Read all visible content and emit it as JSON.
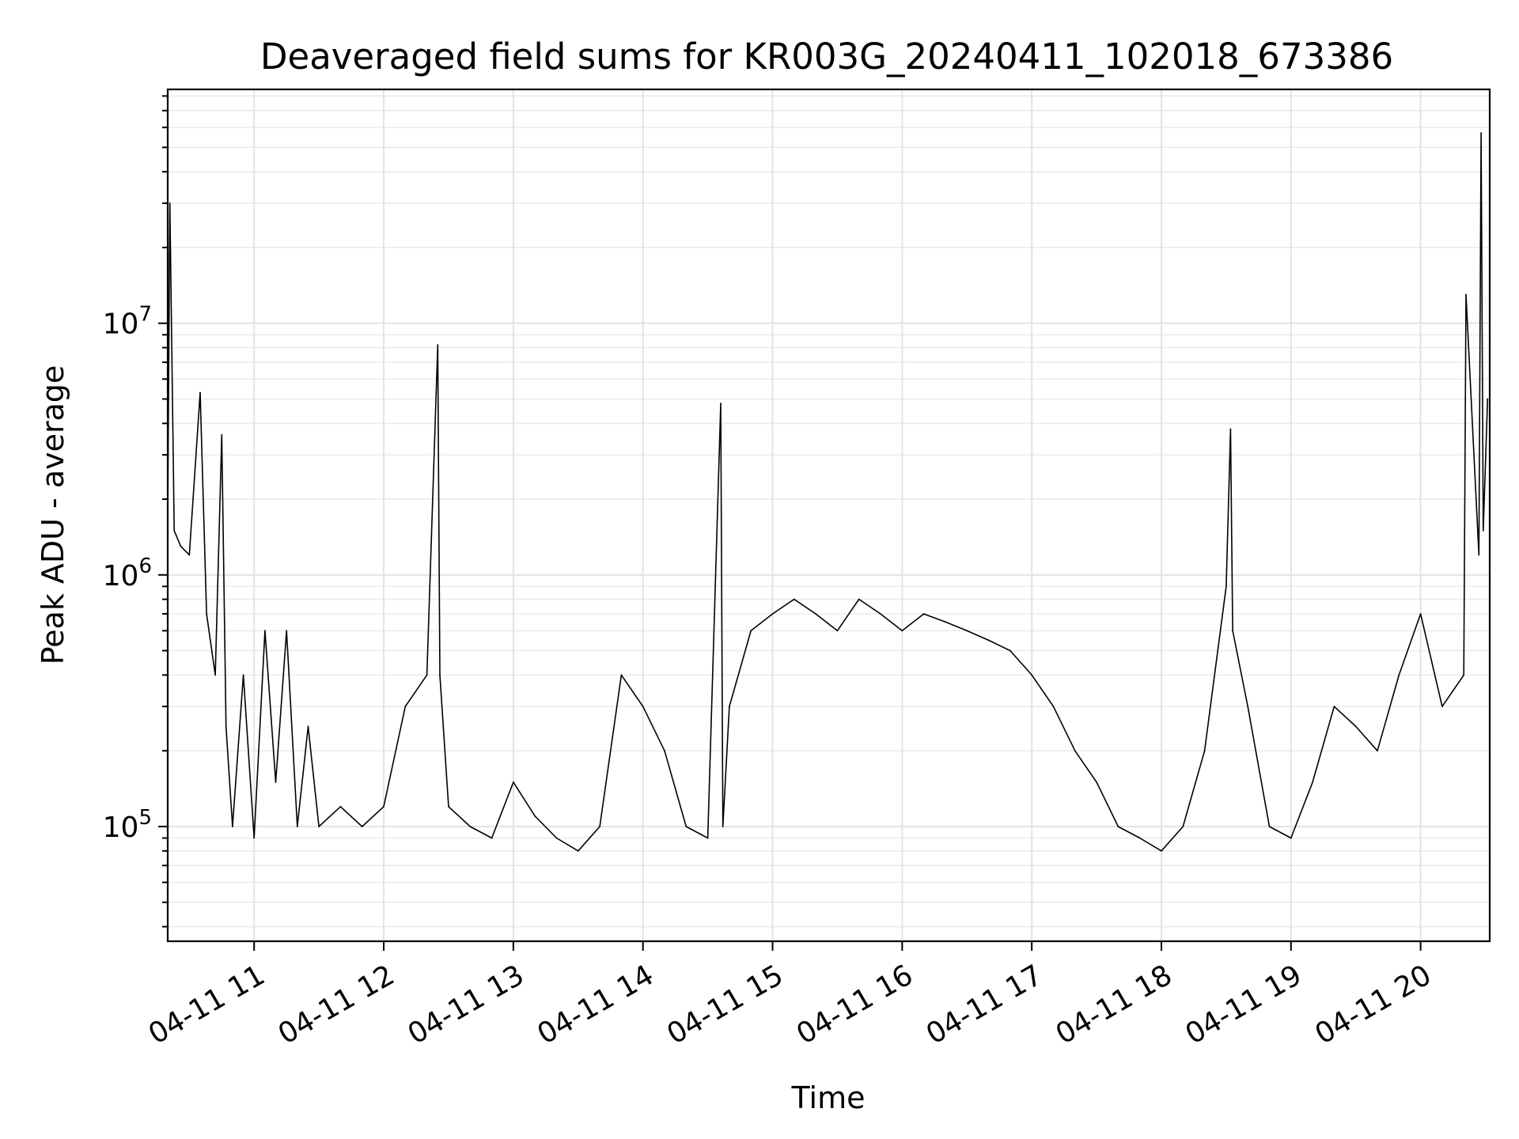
{
  "chart_data": {
    "type": "line",
    "title": "Deaveraged field sums for KR003G_20240411_102018_673386",
    "xlabel": "Time",
    "ylabel": "Peak ADU - average",
    "yscale": "log",
    "ylim": [
      35000,
      85000000
    ],
    "xlim": [
      "2024-04-11 10:20",
      "2024-04-11 20:32"
    ],
    "grid": true,
    "line_color": "#000000",
    "x_ticks": [
      {
        "value": "2024-04-11 11:00",
        "label": "04-11 11"
      },
      {
        "value": "2024-04-11 12:00",
        "label": "04-11 12"
      },
      {
        "value": "2024-04-11 13:00",
        "label": "04-11 13"
      },
      {
        "value": "2024-04-11 14:00",
        "label": "04-11 14"
      },
      {
        "value": "2024-04-11 15:00",
        "label": "04-11 15"
      },
      {
        "value": "2024-04-11 16:00",
        "label": "04-11 16"
      },
      {
        "value": "2024-04-11 17:00",
        "label": "04-11 17"
      },
      {
        "value": "2024-04-11 18:00",
        "label": "04-11 18"
      },
      {
        "value": "2024-04-11 19:00",
        "label": "04-11 19"
      },
      {
        "value": "2024-04-11 20:00",
        "label": "04-11 20"
      }
    ],
    "y_ticks": [
      {
        "value": 100000,
        "base": "10",
        "exp": "5"
      },
      {
        "value": 1000000,
        "base": "10",
        "exp": "6"
      },
      {
        "value": 10000000,
        "base": "10",
        "exp": "7"
      }
    ],
    "series": [
      {
        "x": [
          "2024-04-11 10:20",
          "2024-04-11 10:21",
          "2024-04-11 10:23",
          "2024-04-11 10:26",
          "2024-04-11 10:30",
          "2024-04-11 10:35",
          "2024-04-11 10:38",
          "2024-04-11 10:42",
          "2024-04-11 10:45",
          "2024-04-11 10:47",
          "2024-04-11 10:50",
          "2024-04-11 10:55",
          "2024-04-11 11:00",
          "2024-04-11 11:05",
          "2024-04-11 11:10",
          "2024-04-11 11:15",
          "2024-04-11 11:20",
          "2024-04-11 11:25",
          "2024-04-11 11:30",
          "2024-04-11 11:40",
          "2024-04-11 11:50",
          "2024-04-11 12:00",
          "2024-04-11 12:10",
          "2024-04-11 12:20",
          "2024-04-11 12:25",
          "2024-04-11 12:26",
          "2024-04-11 12:30",
          "2024-04-11 12:40",
          "2024-04-11 12:50",
          "2024-04-11 13:00",
          "2024-04-11 13:10",
          "2024-04-11 13:20",
          "2024-04-11 13:30",
          "2024-04-11 13:40",
          "2024-04-11 13:50",
          "2024-04-11 14:00",
          "2024-04-11 14:10",
          "2024-04-11 14:20",
          "2024-04-11 14:30",
          "2024-04-11 14:36",
          "2024-04-11 14:37",
          "2024-04-11 14:40",
          "2024-04-11 14:50",
          "2024-04-11 15:00",
          "2024-04-11 15:10",
          "2024-04-11 15:20",
          "2024-04-11 15:30",
          "2024-04-11 15:40",
          "2024-04-11 15:50",
          "2024-04-11 16:00",
          "2024-04-11 16:10",
          "2024-04-11 16:20",
          "2024-04-11 16:30",
          "2024-04-11 16:40",
          "2024-04-11 16:50",
          "2024-04-11 17:00",
          "2024-04-11 17:10",
          "2024-04-11 17:20",
          "2024-04-11 17:30",
          "2024-04-11 17:40",
          "2024-04-11 17:50",
          "2024-04-11 18:00",
          "2024-04-11 18:10",
          "2024-04-11 18:20",
          "2024-04-11 18:30",
          "2024-04-11 18:32",
          "2024-04-11 18:33",
          "2024-04-11 18:40",
          "2024-04-11 18:50",
          "2024-04-11 19:00",
          "2024-04-11 19:10",
          "2024-04-11 19:20",
          "2024-04-11 19:30",
          "2024-04-11 19:40",
          "2024-04-11 19:50",
          "2024-04-11 20:00",
          "2024-04-11 20:10",
          "2024-04-11 20:20",
          "2024-04-11 20:21",
          "2024-04-11 20:27",
          "2024-04-11 20:28",
          "2024-04-11 20:29",
          "2024-04-11 20:31"
        ],
        "y": [
          1700000,
          30000000,
          1500000,
          1300000,
          1200000,
          5300000,
          700000,
          400000,
          3600000,
          250000,
          100000,
          400000,
          90000,
          600000,
          150000,
          600000,
          100000,
          250000,
          100000,
          120000,
          100000,
          120000,
          300000,
          400000,
          8200000,
          400000,
          120000,
          100000,
          90000,
          150000,
          110000,
          90000,
          80000,
          100000,
          400000,
          300000,
          200000,
          100000,
          90000,
          4800000,
          100000,
          300000,
          600000,
          700000,
          800000,
          700000,
          600000,
          800000,
          700000,
          600000,
          700000,
          650000,
          600000,
          550000,
          500000,
          400000,
          300000,
          200000,
          150000,
          100000,
          90000,
          80000,
          100000,
          200000,
          900000,
          3800000,
          600000,
          300000,
          100000,
          90000,
          150000,
          300000,
          250000,
          200000,
          400000,
          700000,
          300000,
          400000,
          13000000,
          1200000,
          57000000,
          1500000,
          5000000
        ]
      }
    ]
  }
}
